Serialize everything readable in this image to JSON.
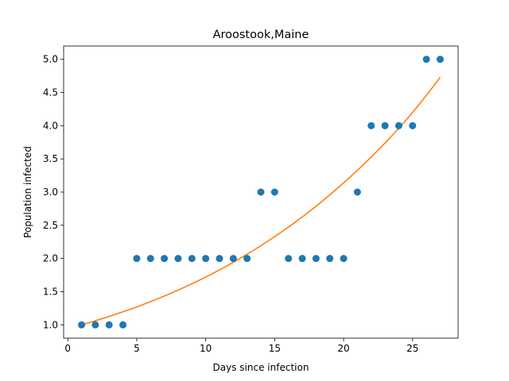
{
  "chart_data": {
    "type": "scatter",
    "title": "Aroostook,Maine",
    "xlabel": "Days since infection",
    "ylabel": "Population infected",
    "xlim": [
      -0.3,
      28.3
    ],
    "ylim": [
      0.8,
      5.2
    ],
    "xticks": [
      0,
      5,
      10,
      15,
      20,
      25
    ],
    "yticks": [
      1.0,
      1.5,
      2.0,
      2.5,
      3.0,
      3.5,
      4.0,
      4.5,
      5.0
    ],
    "grid": false,
    "series": [
      {
        "type": "scatter",
        "color": "#1f77b4",
        "x": [
          1,
          2,
          3,
          4,
          5,
          6,
          7,
          8,
          9,
          10,
          11,
          12,
          13,
          14,
          15,
          16,
          17,
          18,
          19,
          20,
          21,
          22,
          23,
          24,
          25,
          26,
          27
        ],
        "y": [
          1,
          1,
          1,
          1,
          2,
          2,
          2,
          2,
          2,
          2,
          2,
          2,
          2,
          3,
          3,
          2,
          2,
          2,
          2,
          2,
          3,
          4,
          4,
          4,
          4,
          5,
          5
        ]
      },
      {
        "type": "line",
        "color": "#ff7f0e",
        "x": [
          1,
          5,
          10,
          15,
          20,
          25,
          27
        ],
        "y": [
          1.0,
          1.27,
          1.72,
          2.33,
          3.14,
          4.2,
          4.73
        ]
      }
    ]
  }
}
